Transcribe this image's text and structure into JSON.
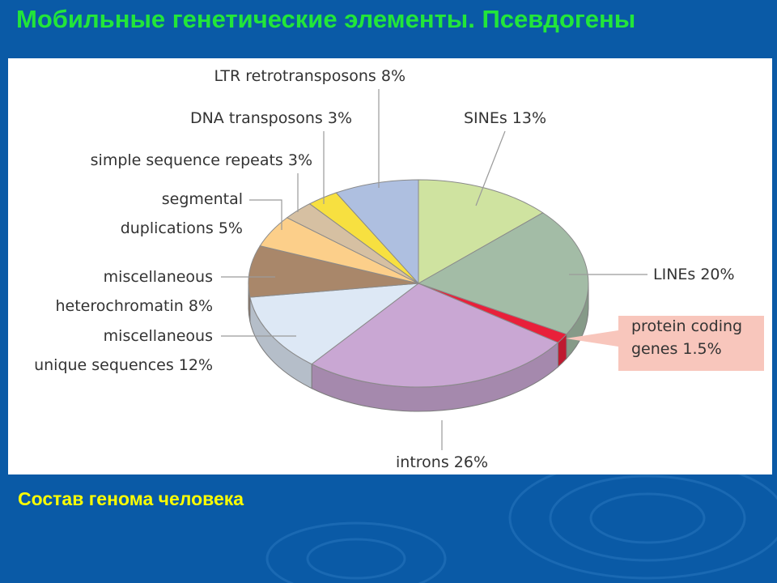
{
  "slide": {
    "title": "Мобильные генетические элементы. Псевдогены",
    "caption": "Состав генома человека"
  },
  "colors": {
    "background": "#0a5aa6",
    "title": "#22e63a",
    "caption": "#ffff00",
    "highlight_box": "#f8c6bc"
  },
  "chart_data": {
    "type": "pie",
    "style": "3d",
    "slices": [
      {
        "label": "SINEs 13%",
        "value": 13,
        "color": "#cfe3a0"
      },
      {
        "label": "LINEs 20%",
        "value": 20,
        "color": "#a3bca6"
      },
      {
        "label": "protein coding genes 1.5%",
        "lines": [
          "protein coding",
          "genes 1.5%"
        ],
        "value": 1.5,
        "color": "#e8203a",
        "highlight": true
      },
      {
        "label": "introns 26%",
        "value": 26,
        "color": "#c9a7d3"
      },
      {
        "label": "miscellaneous unique sequences 12%",
        "lines": [
          "miscellaneous",
          "unique sequences 12%"
        ],
        "value": 12,
        "color": "#dde8f5"
      },
      {
        "label": "miscellaneous heterochromatin 8%",
        "lines": [
          "miscellaneous",
          "heterochromatin 8%"
        ],
        "value": 8,
        "color": "#a9876a"
      },
      {
        "label": "segmental duplications 5%",
        "lines": [
          "segmental",
          "duplications 5%"
        ],
        "value": 5,
        "color": "#fccf8a"
      },
      {
        "label": "simple sequence repeats 3%",
        "value": 3,
        "color": "#d6c0a2"
      },
      {
        "label": "DNA transposons 3%",
        "value": 3,
        "color": "#f7e040"
      },
      {
        "label": "LTR retrotransposons 8%",
        "value": 8,
        "color": "#aebfe0"
      }
    ]
  }
}
